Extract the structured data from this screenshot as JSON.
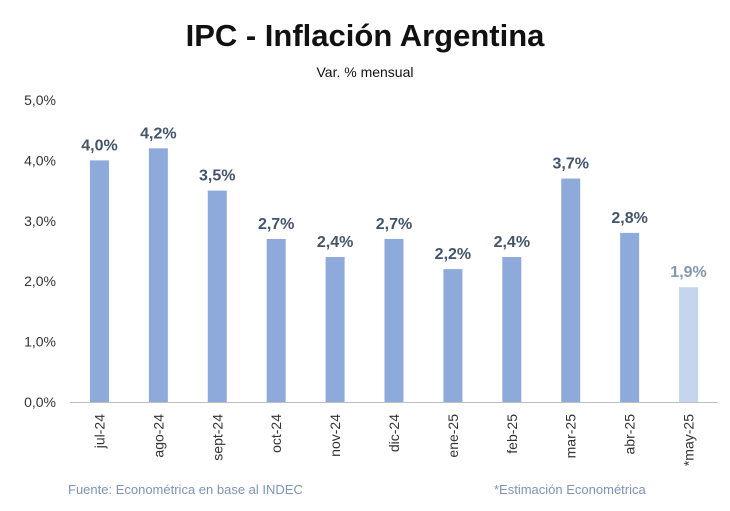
{
  "chart_data": {
    "type": "bar",
    "title": "IPC - Inflación Argentina",
    "subtitle": "Var. % mensual",
    "categories": [
      "jul-24",
      "ago-24",
      "sept-24",
      "oct-24",
      "nov-24",
      "dic-24",
      "ene-25",
      "feb-25",
      "mar-25",
      "abr-25",
      "*may-25"
    ],
    "values": [
      4.0,
      4.2,
      3.5,
      2.7,
      2.4,
      2.7,
      2.2,
      2.4,
      3.7,
      2.8,
      1.9
    ],
    "data_labels": [
      "4,0%",
      "4,2%",
      "3,5%",
      "2,7%",
      "2,4%",
      "2,7%",
      "2,2%",
      "2,4%",
      "3,7%",
      "2,8%",
      "1,9%"
    ],
    "estimated": [
      false,
      false,
      false,
      false,
      false,
      false,
      false,
      false,
      false,
      false,
      true
    ],
    "ylim": [
      0,
      5
    ],
    "yticks": [
      0,
      1,
      2,
      3,
      4,
      5
    ],
    "ytick_labels": [
      "0,0%",
      "1,0%",
      "2,0%",
      "3,0%",
      "4,0%",
      "5,0%"
    ],
    "grid": false,
    "colors": {
      "bar": "#8eaadb",
      "bar_estimated": "#c5d5ee",
      "label": "#44546a",
      "label_estimated": "#8497b0",
      "footer": "#7d93b8"
    }
  },
  "footer": {
    "source": "Fuente: Econométrica en base al INDEC",
    "note": "*Estimación Econométrica"
  }
}
